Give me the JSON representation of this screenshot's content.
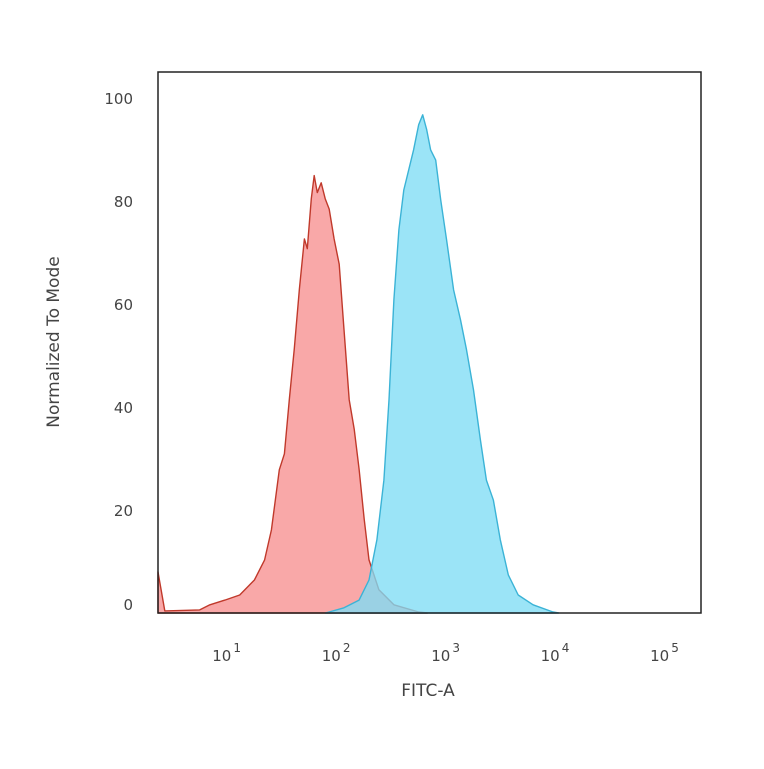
{
  "chart_data": {
    "type": "area",
    "title": "",
    "xlabel": "FITC-A",
    "ylabel": "Normalized To Mode",
    "x_scale": "log",
    "xlim": [
      2.08,
      190000
    ],
    "ylim": [
      0,
      105
    ],
    "grid": false,
    "x_ticks": [
      {
        "value": 10,
        "base": "10",
        "exp": "1"
      },
      {
        "value": 100,
        "base": "10",
        "exp": "2"
      },
      {
        "value": 1000,
        "base": "10",
        "exp": "3"
      },
      {
        "value": 10000,
        "base": "10",
        "exp": "4"
      },
      {
        "value": 100000,
        "base": "10",
        "exp": "5"
      }
    ],
    "y_ticks": [
      0,
      20,
      40,
      60,
      80,
      100
    ],
    "series": [
      {
        "color_fill": "#f9a3a3",
        "color_line": "#c0392b",
        "x": [
          2.08,
          2.1,
          2.4,
          5.0,
          6.2,
          8.5,
          11.6,
          15.8,
          19.6,
          22.6,
          26.7,
          29.7,
          33,
          36.6,
          40.7,
          45.2,
          48.1,
          52.3,
          55.6,
          59.3,
          64.4,
          70,
          76.2,
          84.5,
          94,
          104,
          116,
          129,
          143,
          159,
          176,
          217,
          297,
          501,
          600
        ],
        "y": [
          8,
          7.4,
          0.4,
          0.6,
          1.6,
          2.5,
          3.5,
          6.4,
          10.3,
          16.1,
          27.8,
          30.9,
          41.6,
          51.3,
          62.9,
          72.6,
          70.7,
          80.4,
          84.9,
          81.6,
          83.5,
          80.4,
          78.4,
          72.6,
          67.7,
          55.0,
          41.4,
          35.7,
          27.9,
          18.2,
          10.3,
          4.5,
          1.6,
          0.2,
          0
        ]
      },
      {
        "color_fill": "#7fdcf5",
        "color_line": "#3bb3d6",
        "x": [
          70,
          76,
          104,
          143,
          176,
          208,
          241,
          268,
          297,
          330,
          366,
          406,
          450,
          501,
          545,
          593,
          644,
          716,
          795,
          901,
          1043,
          1207,
          1368,
          1585,
          1836,
          2080,
          2409,
          2788,
          3296,
          4064,
          5559,
          8452,
          9500
        ],
        "y": [
          0,
          0.2,
          1.0,
          2.5,
          6.4,
          14.2,
          25.8,
          41.4,
          60.8,
          74.4,
          82.1,
          86.0,
          89.9,
          94.8,
          96.7,
          93.8,
          89.9,
          87.9,
          80.2,
          72.4,
          62.7,
          56.9,
          51.1,
          43.3,
          33.6,
          25.8,
          21.9,
          14.2,
          7.4,
          3.5,
          1.6,
          0.2,
          0
        ]
      }
    ]
  }
}
